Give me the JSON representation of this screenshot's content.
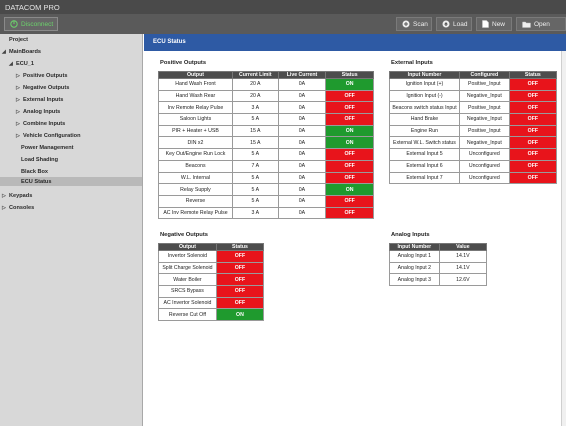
{
  "app": {
    "title": "DATACOM PRO"
  },
  "toolbar": {
    "disconnect_label": "Disconnect",
    "scan_label": "Scan",
    "load_label": "Load",
    "new_label": "New",
    "open_label": "Open"
  },
  "sidebar": {
    "project": "Project",
    "mainboards": "MainBoards",
    "ecu": "ECU_1",
    "positive_outputs": "Positive Outputs",
    "negative_outputs": "Negative Outputs",
    "external_inputs": "External Inputs",
    "analog_inputs": "Analog Inputs",
    "combine_inputs": "Combine Inputs",
    "vehicle_configuration": "Vehicle Configuration",
    "power_management": "Power Management",
    "load_shading": "Load Shading",
    "black_box": "Black Box",
    "ecu_status": "ECU Status",
    "keypads": "Keypads",
    "consoles": "Consoles"
  },
  "panel": {
    "title": "ECU Status"
  },
  "positive_outputs": {
    "title": "Positive Outputs",
    "headers": [
      "Output",
      "Current Limit",
      "Live Current",
      "Status"
    ],
    "rows": [
      [
        "Hand Wash Front",
        "20 A",
        "0A",
        "ON"
      ],
      [
        "Hand Wash Rear",
        "20 A",
        "0A",
        "OFF"
      ],
      [
        "Inv Remote Relay Pulse",
        "3 A",
        "0A",
        "OFF"
      ],
      [
        "Saloon Lights",
        "5 A",
        "0A",
        "OFF"
      ],
      [
        "PIR + Heater + USB",
        "15 A",
        "0A",
        "ON"
      ],
      [
        "DIN x2",
        "15 A",
        "0A",
        "ON"
      ],
      [
        "Key Out/Engine Run Lock",
        "5 A",
        "0A",
        "OFF"
      ],
      [
        "Beacons",
        "7 A",
        "0A",
        "OFF"
      ],
      [
        "W.L. Internal",
        "5 A",
        "0A",
        "OFF"
      ],
      [
        "Relay Supply",
        "5 A",
        "0A",
        "ON"
      ],
      [
        "Reverse",
        "5 A",
        "0A",
        "OFF"
      ],
      [
        "AC Inv Remote Relay Pulse",
        "3 A",
        "0A",
        "OFF"
      ]
    ]
  },
  "external_inputs": {
    "title": "External Inputs",
    "headers": [
      "Input Number",
      "Configured",
      "Status"
    ],
    "rows": [
      [
        "Ignition Input (+)",
        "Positive_Input",
        "OFF"
      ],
      [
        "Ignition Input (-)",
        "Negative_Input",
        "OFF"
      ],
      [
        "Beacons switch status Input",
        "Positive_Input",
        "OFF"
      ],
      [
        "Hand Brake",
        "Negative_Input",
        "OFF"
      ],
      [
        "Engine Run",
        "Positive_Input",
        "OFF"
      ],
      [
        "External W.L. Switch status",
        "Negative_Input",
        "OFF"
      ],
      [
        "External Input 5",
        "Unconfigured",
        "OFF"
      ],
      [
        "External Input 6",
        "Unconfigured",
        "OFF"
      ],
      [
        "External Input 7",
        "Unconfigured",
        "OFF"
      ]
    ]
  },
  "negative_outputs": {
    "title": "Negative Outputs",
    "headers": [
      "Output",
      "Status"
    ],
    "rows": [
      [
        "Invertor Solenoid",
        "OFF"
      ],
      [
        "Split Charge Solenoid",
        "OFF"
      ],
      [
        "Water Boiler",
        "OFF"
      ],
      [
        "SRCS Bypass",
        "OFF"
      ],
      [
        "AC Invertor Solenoid",
        "OFF"
      ],
      [
        "Reverse Cut Off",
        "ON"
      ]
    ]
  },
  "analog_inputs": {
    "title": "Analog Inputs",
    "headers": [
      "Input Number",
      "Value"
    ],
    "rows": [
      [
        "Analog Input 1",
        "14.1V"
      ],
      [
        "Analog Input 2",
        "14.1V"
      ],
      [
        "Analog Input 3",
        "12.6V"
      ]
    ]
  },
  "colors": {
    "on": "#1f9a2e",
    "off": "#e8141b",
    "header_blue": "#2e5aa4",
    "table_header": "#4d4d4d"
  }
}
